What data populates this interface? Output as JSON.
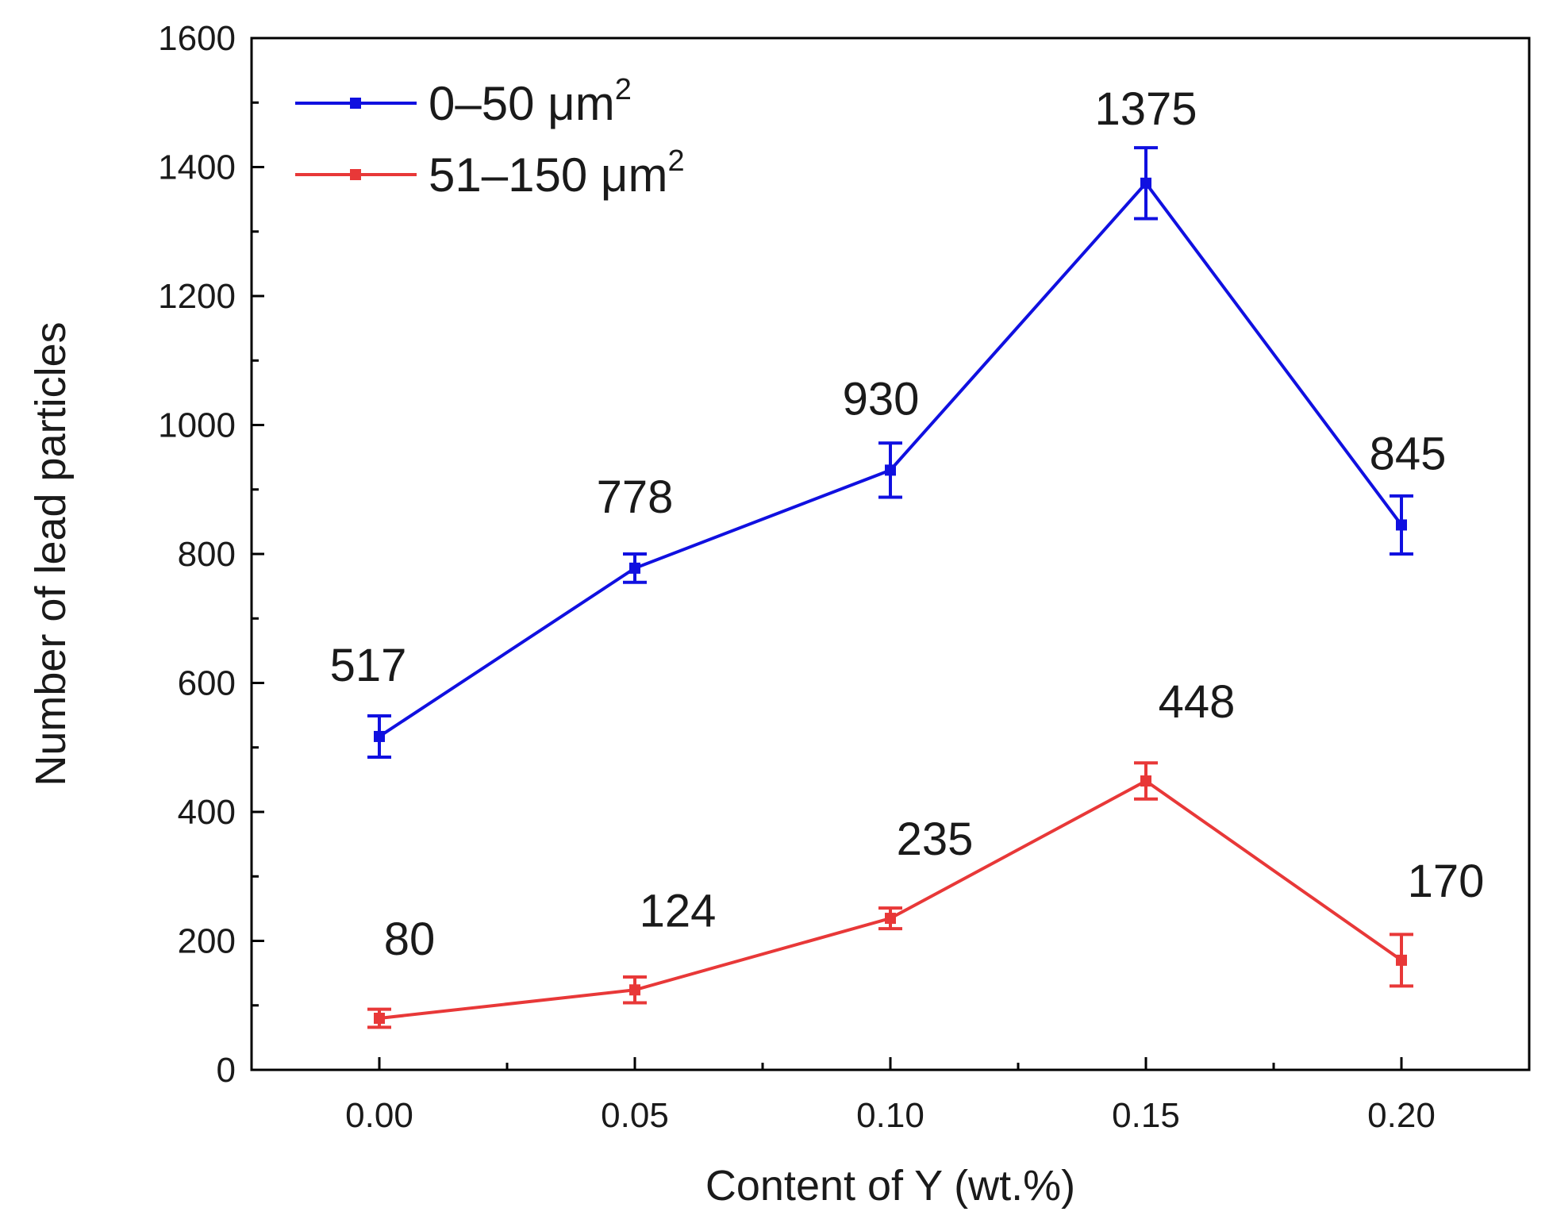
{
  "chart_data": {
    "type": "line",
    "title": "",
    "xlabel": "Content of Y (wt.%)",
    "ylabel": "Number of lead particles",
    "x": [
      0.0,
      0.05,
      0.1,
      0.15,
      0.2
    ],
    "x_tick_labels": [
      "0.00",
      "0.05",
      "0.10",
      "0.15",
      "0.20"
    ],
    "xlim": [
      -0.025,
      0.225
    ],
    "ylim": [
      0,
      1600
    ],
    "y_ticks": [
      0,
      200,
      400,
      600,
      800,
      1000,
      1200,
      1400,
      1600
    ],
    "y_tick_labels": [
      "0",
      "200",
      "400",
      "600",
      "800",
      "1000",
      "1200",
      "1400",
      "1600"
    ],
    "grid": false,
    "legend_position": "top-left",
    "series": [
      {
        "name": "0–50 μm",
        "superscript": "2",
        "color": "#1010e0",
        "values": [
          517,
          778,
          930,
          1375,
          845
        ],
        "errors": [
          32,
          22,
          42,
          55,
          45
        ],
        "labels": [
          "517",
          "778",
          "930",
          "1375",
          "845"
        ]
      },
      {
        "name": "51–150 μm",
        "superscript": "2",
        "color": "#e83838",
        "values": [
          80,
          124,
          235,
          448,
          170
        ],
        "errors": [
          14,
          20,
          16,
          28,
          40
        ],
        "labels": [
          "80",
          "124",
          "235",
          "448",
          "170"
        ]
      }
    ]
  }
}
